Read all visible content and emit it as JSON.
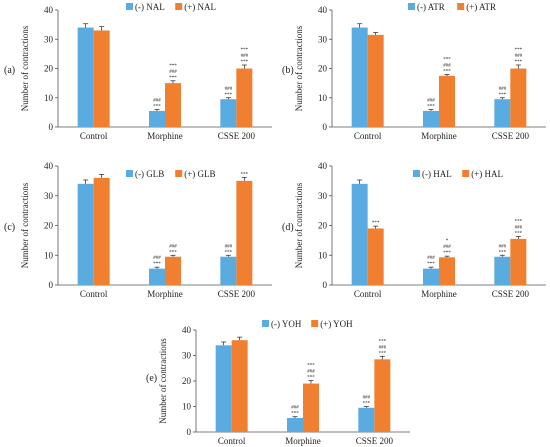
{
  "colors": {
    "minus": "#5aace0",
    "plus": "#f08030"
  },
  "categories": [
    "Control",
    "Morphine",
    "CSSE 200"
  ],
  "chart_data": [
    {
      "type": "bar",
      "panel": "(a)",
      "ylabel": "Number of contractions",
      "ylim": [
        0,
        40
      ],
      "yticks": [
        0,
        10,
        20,
        30,
        40
      ],
      "categories": [
        "Control",
        "Morphine",
        "CSSE 200"
      ],
      "series": [
        {
          "name": "(-) NAL",
          "values": [
            34,
            5.5,
            9.5
          ],
          "err": [
            1.3,
            0.5,
            0.5
          ]
        },
        {
          "name": "(+) NAL",
          "values": [
            33,
            15,
            20
          ],
          "err": [
            1.3,
            0.8,
            1.2
          ]
        }
      ],
      "sig": [
        [
          [],
          [
            "###",
            "***"
          ],
          [
            "###",
            "***"
          ]
        ],
        [
          [],
          [
            "***",
            "###",
            "***"
          ],
          [
            "***",
            "###",
            "***"
          ]
        ]
      ]
    },
    {
      "type": "bar",
      "panel": "(b)",
      "ylabel": "Number of contractions",
      "ylim": [
        0,
        40
      ],
      "yticks": [
        0,
        10,
        20,
        30,
        40
      ],
      "categories": [
        "Control",
        "Morphine",
        "CSSE 200"
      ],
      "series": [
        {
          "name": "(-) ATR",
          "values": [
            34,
            5.5,
            9.5
          ],
          "err": [
            1.3,
            0.5,
            0.5
          ]
        },
        {
          "name": "(+) ATR",
          "values": [
            31.5,
            17.5,
            20
          ],
          "err": [
            0.8,
            0.5,
            1.2
          ]
        }
      ],
      "sig": [
        [
          [],
          [
            "###",
            "***"
          ],
          [
            "###",
            "***"
          ]
        ],
        [
          [],
          [
            "***",
            "###",
            "***"
          ],
          [
            "***",
            "###",
            "***"
          ]
        ]
      ]
    },
    {
      "type": "bar",
      "panel": "(c)",
      "ylabel": "Number of contractions",
      "ylim": [
        0,
        40
      ],
      "yticks": [
        0,
        10,
        20,
        30,
        40
      ],
      "categories": [
        "Control",
        "Morphine",
        "CSSE 200"
      ],
      "series": [
        {
          "name": "(-) GLB",
          "values": [
            34,
            5.5,
            9.5
          ],
          "err": [
            1.3,
            0.5,
            0.5
          ]
        },
        {
          "name": "(+) GLB",
          "values": [
            36,
            9.5,
            35
          ],
          "err": [
            1.2,
            0.5,
            1.2
          ]
        }
      ],
      "sig": [
        [
          [],
          [
            "###",
            "***"
          ],
          [
            "###",
            "***"
          ]
        ],
        [
          [],
          [
            "###",
            "***"
          ],
          [
            "***"
          ]
        ]
      ]
    },
    {
      "type": "bar",
      "panel": "(d)",
      "ylabel": "Number of contractions",
      "ylim": [
        0,
        40
      ],
      "yticks": [
        0,
        10,
        20,
        30,
        40
      ],
      "categories": [
        "Control",
        "Morphine",
        "CSSE 200"
      ],
      "series": [
        {
          "name": "(-) HAL",
          "values": [
            34,
            5.5,
            9.5
          ],
          "err": [
            1.3,
            0.5,
            0.5
          ]
        },
        {
          "name": "(+) HAL",
          "values": [
            19,
            9.3,
            15.5
          ],
          "err": [
            0.8,
            0.4,
            0.8
          ]
        }
      ],
      "sig": [
        [
          [],
          [
            "###",
            "***"
          ],
          [
            "###",
            "***"
          ]
        ],
        [
          [
            "***"
          ],
          [
            "*",
            "###",
            "***"
          ],
          [
            "***",
            "###",
            "***"
          ]
        ]
      ]
    },
    {
      "type": "bar",
      "panel": "(e)",
      "ylabel": "Number of contractions",
      "ylim": [
        0,
        40
      ],
      "yticks": [
        0,
        10,
        20,
        30,
        40
      ],
      "categories": [
        "Control",
        "Morphine",
        "CSSE 200"
      ],
      "series": [
        {
          "name": "(-) YOH",
          "values": [
            34,
            5.5,
            9.5
          ],
          "err": [
            1.3,
            0.5,
            0.5
          ]
        },
        {
          "name": "(+) YOH",
          "values": [
            36,
            19,
            28.5
          ],
          "err": [
            1.2,
            1.2,
            1.2
          ]
        }
      ],
      "sig": [
        [
          [],
          [
            "###",
            "***"
          ],
          [
            "###",
            "***"
          ]
        ],
        [
          [],
          [
            "***",
            "###",
            "***"
          ],
          [
            "***",
            "###",
            "***"
          ]
        ]
      ]
    }
  ]
}
